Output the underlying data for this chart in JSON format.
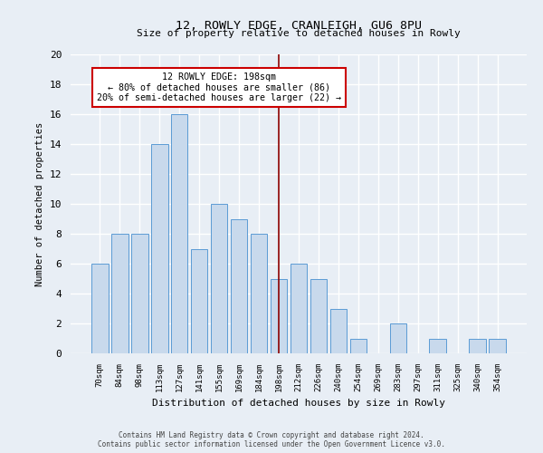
{
  "title1": "12, ROWLY EDGE, CRANLEIGH, GU6 8PU",
  "title2": "Size of property relative to detached houses in Rowly",
  "xlabel": "Distribution of detached houses by size in Rowly",
  "ylabel": "Number of detached properties",
  "categories": [
    "70sqm",
    "84sqm",
    "98sqm",
    "113sqm",
    "127sqm",
    "141sqm",
    "155sqm",
    "169sqm",
    "184sqm",
    "198sqm",
    "212sqm",
    "226sqm",
    "240sqm",
    "254sqm",
    "269sqm",
    "283sqm",
    "297sqm",
    "311sqm",
    "325sqm",
    "340sqm",
    "354sqm"
  ],
  "values": [
    6,
    8,
    8,
    14,
    16,
    7,
    10,
    9,
    8,
    5,
    6,
    5,
    3,
    1,
    0,
    2,
    0,
    1,
    0,
    1,
    1
  ],
  "bar_color": "#c8d9ec",
  "bar_edge_color": "#5b9bd5",
  "highlight_index": 9,
  "highlight_line_color": "#8b0000",
  "annotation_text": "12 ROWLY EDGE: 198sqm\n← 80% of detached houses are smaller (86)\n20% of semi-detached houses are larger (22) →",
  "annotation_box_color": "#ffffff",
  "annotation_box_edge_color": "#cc0000",
  "ylim": [
    0,
    20
  ],
  "yticks": [
    0,
    2,
    4,
    6,
    8,
    10,
    12,
    14,
    16,
    18,
    20
  ],
  "background_color": "#e8eef5",
  "grid_color": "#ffffff",
  "footer_line1": "Contains HM Land Registry data © Crown copyright and database right 2024.",
  "footer_line2": "Contains public sector information licensed under the Open Government Licence v3.0."
}
